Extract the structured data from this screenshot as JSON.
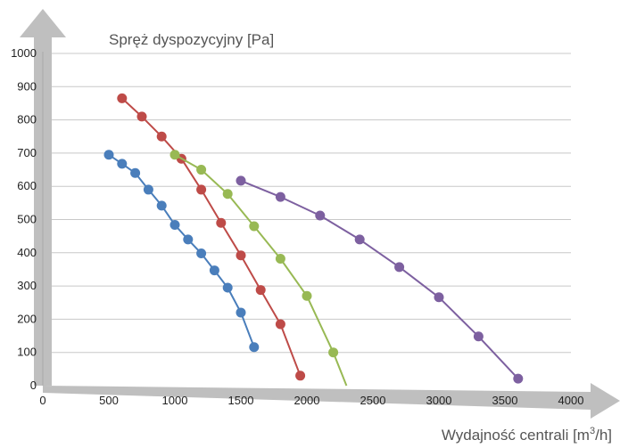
{
  "chart_data": {
    "type": "line",
    "title": "",
    "ylabel": "Spręż dyspozycyjny [Pa]",
    "xlabel": "Wydajność centrali [m",
    "xlabel_sup": "3",
    "xlabel_end": "/h]",
    "xlim": [
      0,
      4000
    ],
    "ylim": [
      0,
      1000
    ],
    "x_ticks": [
      "0",
      "500",
      "1000",
      "1500",
      "2000",
      "2500",
      "3000",
      "3500",
      "4000"
    ],
    "y_ticks": [
      "0",
      "100",
      "200",
      "300",
      "400",
      "500",
      "600",
      "700",
      "800",
      "900",
      "1000"
    ],
    "grid": true,
    "legend": false,
    "series": [
      {
        "color": "#4a7ebb",
        "x": [
          500,
          600,
          700,
          800,
          900,
          1000,
          1100,
          1200,
          1300,
          1400,
          1500,
          1600
        ],
        "y": [
          695,
          668,
          640,
          590,
          542,
          484,
          440,
          398,
          347,
          295,
          220,
          116
        ]
      },
      {
        "color": "#be4b48",
        "x": [
          600,
          750,
          900,
          1050,
          1200,
          1350,
          1500,
          1650,
          1800,
          1950
        ],
        "y": [
          865,
          810,
          750,
          683,
          590,
          490,
          392,
          288,
          185,
          30
        ]
      },
      {
        "color": "#98b954",
        "x": [
          1000,
          1200,
          1400,
          1600,
          1800,
          2000,
          2200,
          2300
        ],
        "y": [
          695,
          650,
          577,
          480,
          382,
          270,
          100,
          0
        ]
      },
      {
        "color": "#7d60a0",
        "x": [
          1500,
          1800,
          2100,
          2400,
          2700,
          3000,
          3300,
          3600
        ],
        "y": [
          617,
          568,
          512,
          440,
          357,
          266,
          148,
          21
        ]
      }
    ],
    "markers_visible_count": [
      12,
      10,
      7,
      8
    ]
  }
}
